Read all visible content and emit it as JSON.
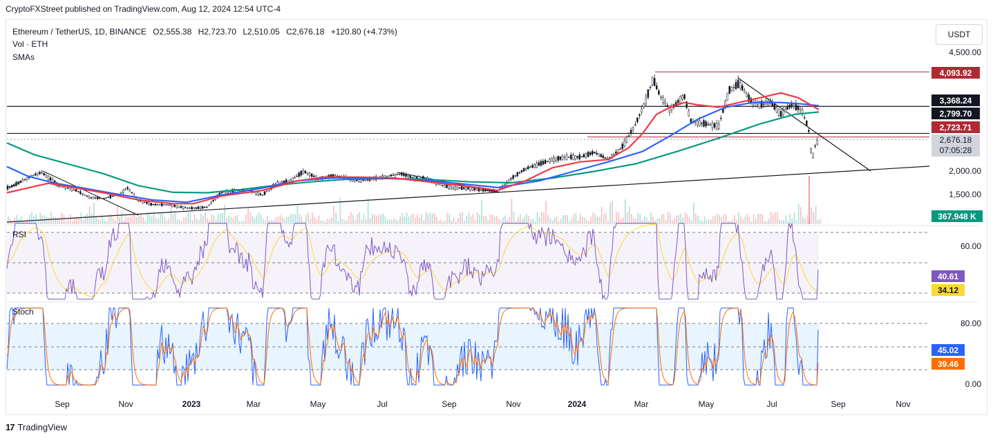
{
  "header": {
    "published": "CryptoFXStreet published on TradingView.com, Aug 12, 2024 12:54 UTC-4"
  },
  "legend": {
    "symbol": "Ethereum / TetherUS, 1D, BINANCE",
    "o": "O2,555.38",
    "h": "H2,723.70",
    "l": "L2,510.05",
    "c": "C2,676.18",
    "chg": "+120.80 (+4.73%)",
    "vol": "Vol · ETH",
    "smas": "SMAs"
  },
  "unit_button": "USDT",
  "rsi_label": "RSI",
  "stoch_label": "Stoch",
  "footer": {
    "brand": "TradingView",
    "logo": "17"
  },
  "colors": {
    "candle": "#131722",
    "sma_red": "#f23645",
    "sma_blue": "#2962ff",
    "sma_green": "#089981",
    "rsi": "#7e57c2",
    "rsi_ma": "#fdd835",
    "stoch_k": "#2962ff",
    "stoch_d": "#ff6d00",
    "rsi_band": "#7e57c2",
    "stoch_band": "#2196f3",
    "resistance": "#b22833"
  },
  "chart_data": [
    {
      "type": "candlestick",
      "title": "Ethereum / TetherUS, 1D, BINANCE",
      "y_ticks": [
        "4,500.00",
        "2,000.00",
        "1,500.00"
      ],
      "x_ticks": [
        "Sep",
        "Nov",
        "2023",
        "Mar",
        "May",
        "Jul",
        "Sep",
        "Nov",
        "2024",
        "Mar",
        "May",
        "Jul",
        "Sep",
        "Nov"
      ],
      "x_ticks_bold": [
        "2023",
        "2024"
      ],
      "price_tags": [
        {
          "label": "4,093.92",
          "color": "#b22833",
          "value": 4093.92
        },
        {
          "label": "3,368.24",
          "color": "#131722",
          "value": 3368.24
        },
        {
          "label": "2,799.70",
          "color": "#131722",
          "value": 2799.7
        },
        {
          "label": "2,723.71",
          "color": "#b22833",
          "value": 2723.71
        },
        {
          "label": "2,676.18",
          "sub": "07:05:28",
          "color": "#d1d4dc",
          "value": 2676.18
        },
        {
          "label": "367.948 K",
          "color": "#089981"
        }
      ],
      "horizontal_levels": [
        3368.24,
        2799.7,
        2723.71,
        4093.92
      ],
      "trendlines": [
        "ascending support",
        "descending resistance"
      ],
      "close_path": [
        [
          0,
          1600
        ],
        [
          20,
          1700
        ],
        [
          45,
          1900
        ],
        [
          60,
          1980
        ],
        [
          85,
          1700
        ],
        [
          110,
          1600
        ],
        [
          130,
          1450
        ],
        [
          150,
          1430
        ],
        [
          170,
          1500
        ],
        [
          185,
          1650
        ],
        [
          200,
          1400
        ],
        [
          220,
          1300
        ],
        [
          245,
          1300
        ],
        [
          260,
          1250
        ],
        [
          280,
          1220
        ],
        [
          300,
          1250
        ],
        [
          320,
          1560
        ],
        [
          340,
          1600
        ],
        [
          360,
          1600
        ],
        [
          380,
          1500
        ],
        [
          400,
          1750
        ],
        [
          420,
          1800
        ],
        [
          440,
          2000
        ],
        [
          460,
          1850
        ],
        [
          480,
          1900
        ],
        [
          500,
          1880
        ],
        [
          520,
          1800
        ],
        [
          540,
          1850
        ],
        [
          560,
          1900
        ],
        [
          580,
          1950
        ],
        [
          600,
          1860
        ],
        [
          620,
          1850
        ],
        [
          640,
          1700
        ],
        [
          660,
          1650
        ],
        [
          680,
          1640
        ],
        [
          700,
          1600
        ],
        [
          720,
          1580
        ],
        [
          740,
          1850
        ],
        [
          760,
          2050
        ],
        [
          780,
          2150
        ],
        [
          800,
          2250
        ],
        [
          820,
          2300
        ],
        [
          840,
          2300
        ],
        [
          860,
          2400
        ],
        [
          880,
          2250
        ],
        [
          900,
          2500
        ],
        [
          920,
          3000
        ],
        [
          935,
          3500
        ],
        [
          945,
          3950
        ],
        [
          955,
          3600
        ],
        [
          970,
          3300
        ],
        [
          990,
          3600
        ],
        [
          1000,
          3050
        ],
        [
          1020,
          3000
        ],
        [
          1040,
          2950
        ],
        [
          1055,
          3700
        ],
        [
          1070,
          3850
        ],
        [
          1085,
          3500
        ],
        [
          1100,
          3400
        ],
        [
          1115,
          3450
        ],
        [
          1130,
          3200
        ],
        [
          1145,
          3400
        ],
        [
          1160,
          3300
        ],
        [
          1170,
          2900
        ],
        [
          1175,
          2250
        ],
        [
          1180,
          2550
        ],
        [
          1185,
          2676
        ]
      ],
      "sma_red": [
        [
          10,
          1550
        ],
        [
          40,
          1650
        ],
        [
          70,
          1750
        ],
        [
          110,
          1650
        ],
        [
          150,
          1550
        ],
        [
          200,
          1400
        ],
        [
          250,
          1320
        ],
        [
          280,
          1320
        ],
        [
          320,
          1480
        ],
        [
          380,
          1600
        ],
        [
          430,
          1800
        ],
        [
          470,
          1880
        ],
        [
          520,
          1880
        ],
        [
          570,
          1860
        ],
        [
          620,
          1780
        ],
        [
          680,
          1680
        ],
        [
          720,
          1600
        ],
        [
          760,
          1800
        ],
        [
          800,
          2080
        ],
        [
          840,
          2200
        ],
        [
          880,
          2250
        ],
        [
          910,
          2500
        ],
        [
          930,
          2800
        ],
        [
          950,
          3200
        ],
        [
          970,
          3350
        ],
        [
          990,
          3450
        ],
        [
          1010,
          3400
        ],
        [
          1040,
          3350
        ],
        [
          1070,
          3450
        ],
        [
          1100,
          3550
        ],
        [
          1130,
          3650
        ],
        [
          1155,
          3550
        ],
        [
          1185,
          3300
        ]
      ],
      "sma_blue": [
        [
          10,
          2100
        ],
        [
          40,
          1900
        ],
        [
          80,
          1750
        ],
        [
          120,
          1650
        ],
        [
          170,
          1520
        ],
        [
          220,
          1400
        ],
        [
          270,
          1350
        ],
        [
          320,
          1500
        ],
        [
          380,
          1650
        ],
        [
          430,
          1800
        ],
        [
          480,
          1860
        ],
        [
          540,
          1860
        ],
        [
          600,
          1830
        ],
        [
          660,
          1750
        ],
        [
          720,
          1660
        ],
        [
          780,
          1800
        ],
        [
          830,
          2000
        ],
        [
          880,
          2200
        ],
        [
          930,
          2420
        ],
        [
          970,
          2750
        ],
        [
          1010,
          3100
        ],
        [
          1050,
          3350
        ],
        [
          1090,
          3450
        ],
        [
          1130,
          3450
        ],
        [
          1160,
          3420
        ],
        [
          1185,
          3380
        ]
      ],
      "sma_green": [
        [
          10,
          2600
        ],
        [
          50,
          2350
        ],
        [
          100,
          2150
        ],
        [
          150,
          1950
        ],
        [
          200,
          1700
        ],
        [
          250,
          1560
        ],
        [
          300,
          1550
        ],
        [
          350,
          1620
        ],
        [
          400,
          1710
        ],
        [
          450,
          1780
        ],
        [
          500,
          1830
        ],
        [
          560,
          1850
        ],
        [
          620,
          1830
        ],
        [
          680,
          1780
        ],
        [
          740,
          1760
        ],
        [
          800,
          1860
        ],
        [
          860,
          2000
        ],
        [
          920,
          2160
        ],
        [
          980,
          2420
        ],
        [
          1040,
          2700
        ],
        [
          1100,
          3000
        ],
        [
          1150,
          3200
        ],
        [
          1185,
          3250
        ]
      ]
    },
    {
      "type": "line",
      "title": "RSI",
      "y_ticks": [
        "60.00"
      ],
      "value_tags": [
        {
          "label": "40.61",
          "color": "#7e57c2",
          "value": 40.61
        },
        {
          "label": "34.12",
          "color": "#fdd835",
          "value": 34.12
        }
      ],
      "bands": [
        70,
        50,
        30
      ]
    },
    {
      "type": "line",
      "title": "Stoch",
      "y_ticks": [
        "80.00",
        "0.00"
      ],
      "value_tags": [
        {
          "label": "45.02",
          "color": "#2962ff",
          "value": 45.02
        },
        {
          "label": "39.46",
          "color": "#ff6d00",
          "value": 39.46
        }
      ],
      "bands": [
        80,
        50,
        20
      ]
    }
  ]
}
